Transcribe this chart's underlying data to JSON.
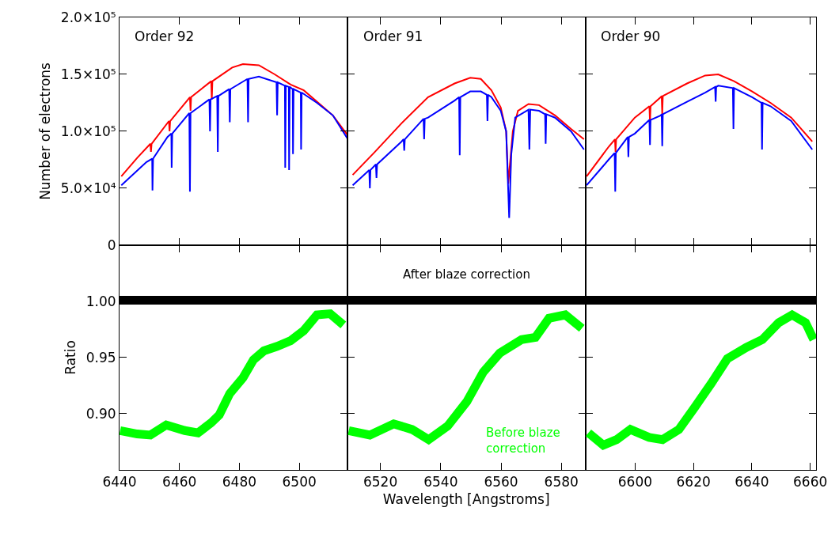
{
  "chart_data": [
    {
      "type": "line",
      "ylabel": "Number of electrons",
      "annotations": [
        "Order 92"
      ],
      "tick_labels": "y",
      "xlim": [
        6440,
        6516
      ],
      "xticks": [
        6440,
        6460,
        6480,
        6500
      ],
      "ylim": [
        0,
        200000
      ],
      "yticks": [
        0,
        {
          "value": 50000,
          "label": "5.0×10⁴"
        },
        {
          "value": 100000,
          "label": "1.0×10⁵"
        },
        {
          "value": 150000,
          "label": "1.5×10⁵"
        },
        {
          "value": 200000,
          "label": "2.0×10⁵"
        }
      ],
      "series": [
        {
          "color": "#ff0000",
          "x": [
            6440.6,
            6446,
            6450.3,
            6450.5,
            6450.7,
            6456.5,
            6456.7,
            6456.9,
            6463.5,
            6463.7,
            6463.9,
            6470.6,
            6470.8,
            6471,
            6477.6,
            6481.2,
            6486.5,
            6491.8,
            6497.1,
            6501.5,
            6505.9,
            6511.2,
            6516
          ],
          "values": [
            60500,
            77000,
            89000,
            82000,
            89000,
            109000,
            100000,
            109000,
            130000,
            118000,
            130000,
            144000,
            128000,
            144000,
            156000,
            159000,
            158000,
            150000,
            141000,
            136000,
            126000,
            114000,
            97000
          ]
        },
        {
          "color": "#0000ff",
          "x": [
            6440.6,
            6449,
            6450.9,
            6451.0,
            6451.2,
            6456,
            6457.3,
            6457.4,
            6457.6,
            6463.3,
            6463.5,
            6463.7,
            6470,
            6470.2,
            6470.4,
            6472.6,
            6472.8,
            6473,
            6476.6,
            6476.8,
            6477,
            6482.7,
            6482.9,
            6483.1,
            6486.5,
            6492.4,
            6492.6,
            6492.8,
            6495.2,
            6495.3,
            6495.5,
            6496.5,
            6496.6,
            6496.8,
            6497.8,
            6497.9,
            6498.1,
            6500.5,
            6500.6,
            6500.8,
            6505.9,
            6511.2,
            6516
          ],
          "values": [
            52600,
            73000,
            76000,
            48000,
            76000,
            95000,
            98000,
            68000,
            98000,
            116000,
            47000,
            116000,
            128000,
            100000,
            128000,
            131000,
            82000,
            131000,
            137000,
            108000,
            137000,
            146000,
            108000,
            146000,
            148000,
            143000,
            114000,
            143000,
            140000,
            68000,
            140000,
            139000,
            66000,
            139000,
            137000,
            80000,
            137000,
            134000,
            84000,
            134000,
            125000,
            114000,
            94000
          ]
        }
      ]
    },
    {
      "type": "line",
      "annotations": [
        "Order 91"
      ],
      "tick_labels": false,
      "xlim": [
        6509,
        6588
      ],
      "xticks": [
        6520,
        6540,
        6560,
        6580
      ],
      "ylim": [
        0,
        200000
      ],
      "yticks": [
        0,
        50000,
        100000,
        150000,
        200000
      ],
      "series": [
        {
          "color": "#ff0000",
          "x": [
            6510.8,
            6518.2,
            6527.0,
            6535.8,
            6544.6,
            6549.8,
            6553.3,
            6556.8,
            6559.9,
            6561.7,
            6562.4,
            6563.9,
            6565.6,
            6569.1,
            6572.6,
            6577.9,
            6583.2,
            6587.5
          ],
          "values": [
            61700,
            82000,
            107000,
            130000,
            142000,
            147000,
            146000,
            136000,
            121000,
            100000,
            54000,
            100000,
            118000,
            124000,
            123000,
            114000,
            102000,
            93000
          ]
        },
        {
          "color": "#0000ff",
          "x": [
            6510.8,
            6516.3,
            6516.5,
            6516.7,
            6518.5,
            6518.7,
            6518.9,
            6527.0,
            6527.7,
            6527.9,
            6528.1,
            6534.3,
            6534.5,
            6534.7,
            6535.8,
            6544.6,
            6546.1,
            6546.3,
            6546.5,
            6549.8,
            6553.3,
            6555.3,
            6555.5,
            6555.7,
            6556.8,
            6559.9,
            6561.7,
            6562.7,
            6563.4,
            6564.7,
            6569.1,
            6569.4,
            6569.7,
            6572.6,
            6574.6,
            6574.8,
            6575.0,
            6577.9,
            6583.2,
            6587.5
          ],
          "values": [
            52600,
            66000,
            50000,
            66000,
            71000,
            59000,
            71000,
            91000,
            93000,
            83000,
            93000,
            111000,
            93000,
            111000,
            112000,
            127000,
            130000,
            79000,
            130000,
            135000,
            135000,
            132000,
            109000,
            132000,
            130000,
            118000,
            100000,
            24000,
            80000,
            112000,
            119000,
            84000,
            119000,
            118000,
            115000,
            89000,
            115000,
            112000,
            100000,
            84000
          ]
        }
      ]
    },
    {
      "type": "line",
      "annotations": [
        "Order 90"
      ],
      "tick_labels": false,
      "xlim": [
        6583,
        6662
      ],
      "xticks": [
        6600,
        6620,
        6640,
        6660
      ],
      "ylim": [
        0,
        200000
      ],
      "yticks": [
        0,
        50000,
        100000,
        150000,
        200000
      ],
      "series": [
        {
          "color": "#ff0000",
          "x": [
            6583.4,
            6591.0,
            6593.1,
            6593.3,
            6593.5,
            6599.9,
            6604.9,
            6605.1,
            6605.3,
            6608.8,
            6609.1,
            6609.3,
            6609.5,
            6617.8,
            6624.0,
            6628.5,
            6633.9,
            6640.1,
            6646.4,
            6653.5,
            6660.7
          ],
          "values": [
            60500,
            86600,
            93000,
            82000,
            93000,
            112000,
            122000,
            108000,
            122000,
            130000,
            131000,
            115000,
            131000,
            142000,
            149000,
            150000,
            144000,
            135000,
            125000,
            112000,
            91000
          ]
        },
        {
          "color": "#0000ff",
          "x": [
            6583.4,
            6591.0,
            6593.0,
            6593.2,
            6593.4,
            6597.5,
            6597.7,
            6597.9,
            6599.9,
            6604.9,
            6605.1,
            6605.3,
            6608.8,
            6609.1,
            6609.3,
            6609.5,
            6617.8,
            6624.0,
            6627.4,
            6627.6,
            6627.8,
            6628.5,
            6633.5,
            6633.7,
            6633.9,
            6640.1,
            6643.3,
            6643.5,
            6643.7,
            6646.4,
            6653.5,
            6660.7
          ],
          "values": [
            52600,
            75300,
            81000,
            47000,
            81000,
            95000,
            77500,
            95000,
            98000,
            110000,
            88000,
            110000,
            114000,
            115000,
            87000,
            115000,
            126000,
            134000,
            139000,
            126000,
            139000,
            140000,
            138000,
            102000,
            138000,
            130000,
            125000,
            84000,
            125000,
            122000,
            109000,
            84000
          ]
        }
      ]
    },
    {
      "type": "line",
      "ylabel": "Ratio",
      "xlim": [
        6440,
        6516
      ],
      "xticks": [
        6440,
        6460,
        6480,
        6500
      ],
      "ylim": [
        0.85,
        1.05
      ],
      "yticks": [
        {
          "value": 0.9,
          "label": "0.90"
        },
        0.95,
        {
          "value": 1.0,
          "label": "1.00"
        }
      ],
      "series": [
        {
          "color": "#000000",
          "x": [
            6440,
            6478,
            6516
          ],
          "values": [
            1.001,
            1.001,
            1.001
          ]
        },
        {
          "color": "#00ff00",
          "x": [
            6440.2,
            6445.9,
            6450.3,
            6455.6,
            6461.8,
            6466.2,
            6470.6,
            6473.3,
            6476.8,
            6481.2,
            6484.7,
            6488.2,
            6492.6,
            6497.1,
            6501.5,
            6505.9,
            6510.3,
            6514.7
          ],
          "values": [
            0.885,
            0.882,
            0.881,
            0.89,
            0.885,
            0.883,
            0.892,
            0.899,
            0.918,
            0.932,
            0.948,
            0.956,
            0.96,
            0.965,
            0.974,
            0.988,
            0.989,
            0.979
          ]
        }
      ]
    },
    {
      "type": "line",
      "xlabel": "Wavelength [Angstroms]",
      "tick_labels": "x",
      "xlim": [
        6509,
        6588
      ],
      "xticks": [
        6520,
        6540,
        6560,
        6580
      ],
      "ylim": [
        0.85,
        1.05
      ],
      "yticks": [
        0.9,
        0.95,
        1.0
      ],
      "series": [
        {
          "name": "After blaze correction",
          "color": "#000000",
          "x": [
            6509,
            6548.5,
            6588
          ],
          "values": [
            1.001,
            1.001,
            1.001
          ]
        },
        {
          "name": "Before blaze\ncorrection",
          "color": "#00ff00",
          "x": [
            6509.5,
            6516.5,
            6524.4,
            6530.5,
            6536.0,
            6542.3,
            6548.7,
            6554.1,
            6559.6,
            6566.8,
            6571.4,
            6575.9,
            6581.3,
            6586.8
          ],
          "values": [
            0.885,
            0.881,
            0.891,
            0.886,
            0.877,
            0.889,
            0.911,
            0.937,
            0.954,
            0.966,
            0.968,
            0.985,
            0.988,
            0.976
          ]
        }
      ]
    },
    {
      "type": "line",
      "tick_labels": "x",
      "xlim": [
        6583,
        6662
      ],
      "xticks": [
        6600,
        6620,
        6640,
        6660
      ],
      "ylim": [
        0.85,
        1.05
      ],
      "yticks": [
        0.9,
        0.95,
        1.0
      ],
      "series": [
        {
          "color": "#000000",
          "x": [
            6583,
            6622.5,
            6662
          ],
          "values": [
            1.001,
            1.001,
            1.001
          ]
        },
        {
          "color": "#00ff00",
          "x": [
            6584.0,
            6589.1,
            6593.7,
            6598.4,
            6604.8,
            6609.4,
            6615.0,
            6620.5,
            6626.1,
            6631.6,
            6638.1,
            6643.6,
            6649.2,
            6653.8,
            6658.4,
            6661.2
          ],
          "values": [
            0.883,
            0.872,
            0.877,
            0.886,
            0.879,
            0.877,
            0.886,
            0.906,
            0.927,
            0.949,
            0.959,
            0.966,
            0.981,
            0.988,
            0.981,
            0.966
          ]
        }
      ]
    }
  ]
}
